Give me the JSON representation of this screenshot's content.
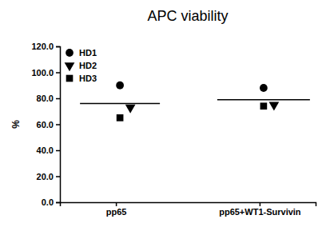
{
  "chart_data": {
    "type": "scatter",
    "title": "APC viability",
    "y_label": "%",
    "categories": [
      "pp65",
      "pp65+WT1-Survivin"
    ],
    "series": [
      {
        "name": "HD1",
        "color": "#000000",
        "marker": "circle",
        "values": [
          90,
          88
        ]
      },
      {
        "name": "HD2",
        "color": "#000000",
        "marker": "triangle-down",
        "values": [
          73,
          75
        ]
      },
      {
        "name": "HD3",
        "color": "#000000",
        "marker": "square",
        "values": [
          65,
          74
        ]
      }
    ],
    "means": [
      76,
      79
    ],
    "ylim": [
      0,
      120
    ],
    "yticks": [
      {
        "value": 0,
        "label": "0.0"
      },
      {
        "value": 20,
        "label": "20.0"
      },
      {
        "value": 40,
        "label": "40.0"
      },
      {
        "value": 60,
        "label": "60.0"
      },
      {
        "value": 80,
        "label": "80.0"
      },
      {
        "value": 100,
        "label": "100.0"
      },
      {
        "value": 120,
        "label": "120.0"
      }
    ],
    "legend": "upper left",
    "grid": false
  }
}
